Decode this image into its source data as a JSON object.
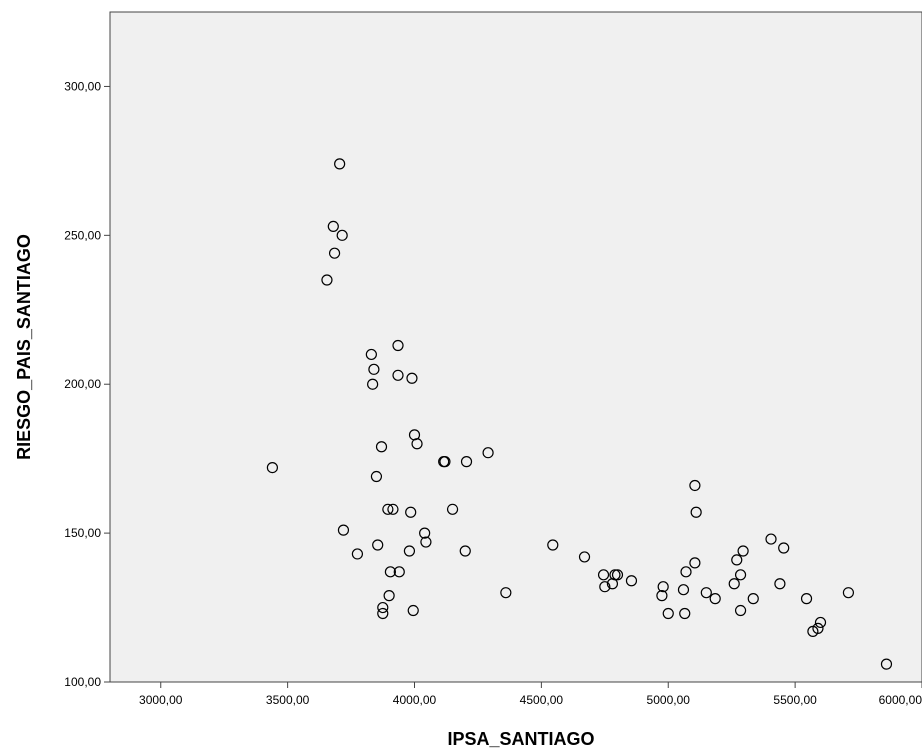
{
  "chart_data": {
    "type": "scatter",
    "title": "",
    "xlabel": "IPSA_SANTIAGO",
    "ylabel": "RIESGO_PAIS_SANTIAGO",
    "xlim": [
      2800,
      6000
    ],
    "ylim": [
      100,
      325
    ],
    "x_ticks": [
      3000,
      3500,
      4000,
      4500,
      5000,
      5500,
      6000
    ],
    "x_tick_labels": [
      "3000,00",
      "3500,00",
      "4000,00",
      "4500,00",
      "5000,00",
      "5500,00",
      "6000,00"
    ],
    "y_ticks": [
      100,
      150,
      200,
      250,
      300
    ],
    "y_tick_labels": [
      "100,00",
      "150,00",
      "200,00",
      "250,00",
      "300,00"
    ],
    "grid": false,
    "marker": "hollow-circle",
    "colors": {
      "plot_background": "#f0f0f0",
      "marker_stroke": "#000000",
      "frame": "#444444"
    },
    "points": [
      [
        3440,
        172
      ],
      [
        3655,
        235
      ],
      [
        3680,
        253
      ],
      [
        3685,
        244
      ],
      [
        3705,
        274
      ],
      [
        3715,
        250
      ],
      [
        3720,
        151
      ],
      [
        3775,
        143
      ],
      [
        3830,
        210
      ],
      [
        3835,
        200
      ],
      [
        3840,
        205
      ],
      [
        3850,
        169
      ],
      [
        3855,
        146
      ],
      [
        3870,
        179
      ],
      [
        3875,
        125
      ],
      [
        3875,
        123
      ],
      [
        3895,
        158
      ],
      [
        3900,
        129
      ],
      [
        3905,
        137
      ],
      [
        3915,
        158
      ],
      [
        3935,
        213
      ],
      [
        3935,
        203
      ],
      [
        3940,
        137
      ],
      [
        3980,
        144
      ],
      [
        3985,
        157
      ],
      [
        3990,
        202
      ],
      [
        3995,
        124
      ],
      [
        4000,
        183
      ],
      [
        4010,
        180
      ],
      [
        4040,
        150
      ],
      [
        4045,
        147
      ],
      [
        4115,
        174
      ],
      [
        4120,
        174
      ],
      [
        4150,
        158
      ],
      [
        4200,
        144
      ],
      [
        4205,
        174
      ],
      [
        4290,
        177
      ],
      [
        4360,
        130
      ],
      [
        4545,
        146
      ],
      [
        4670,
        142
      ],
      [
        4745,
        136
      ],
      [
        4750,
        132
      ],
      [
        4780,
        133
      ],
      [
        4790,
        136
      ],
      [
        4800,
        136
      ],
      [
        4855,
        134
      ],
      [
        4975,
        129
      ],
      [
        4980,
        132
      ],
      [
        5000,
        123
      ],
      [
        5060,
        131
      ],
      [
        5065,
        123
      ],
      [
        5070,
        137
      ],
      [
        5105,
        166
      ],
      [
        5105,
        140
      ],
      [
        5110,
        157
      ],
      [
        5150,
        130
      ],
      [
        5185,
        128
      ],
      [
        5260,
        133
      ],
      [
        5270,
        141
      ],
      [
        5285,
        124
      ],
      [
        5285,
        136
      ],
      [
        5295,
        144
      ],
      [
        5335,
        128
      ],
      [
        5405,
        148
      ],
      [
        5440,
        133
      ],
      [
        5455,
        145
      ],
      [
        5545,
        128
      ],
      [
        5570,
        117
      ],
      [
        5590,
        118
      ],
      [
        5600,
        120
      ],
      [
        5710,
        130
      ],
      [
        5860,
        106
      ]
    ]
  }
}
